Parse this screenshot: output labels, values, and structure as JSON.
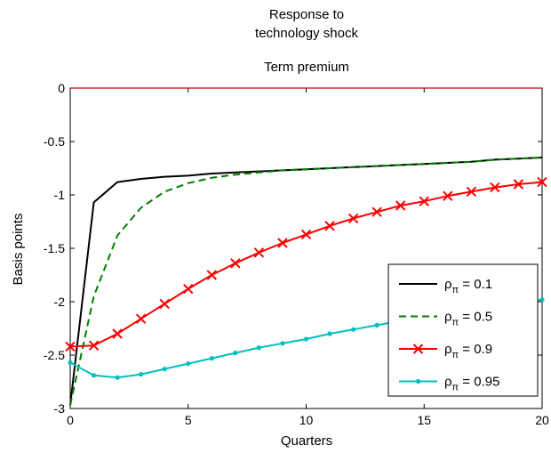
{
  "chart_data": {
    "type": "line",
    "title_lines": [
      "Response to",
      "technology shock"
    ],
    "subtitle": "Term premium",
    "xlabel": "Quarters",
    "ylabel": "Basis points",
    "xlim": [
      0,
      20
    ],
    "ylim": [
      -3,
      0
    ],
    "xticks": [
      0,
      5,
      10,
      15,
      20
    ],
    "yticks": [
      0,
      -0.5,
      -1,
      -1.5,
      -2,
      -2.5,
      -3
    ],
    "xtick_labels": [
      "0",
      "5",
      "10",
      "15",
      "20"
    ],
    "ytick_labels": [
      "0",
      "-0.5",
      "-1",
      "-1.5",
      "-2",
      "-2.5",
      "-3"
    ],
    "grid": false,
    "legend_position": "lower-right",
    "zero_line_color": "#cc0000",
    "x": [
      0,
      1,
      2,
      3,
      4,
      5,
      6,
      7,
      8,
      9,
      10,
      11,
      12,
      13,
      14,
      15,
      16,
      17,
      18,
      19,
      20
    ],
    "series": [
      {
        "name_base": "ρ",
        "name_sub": "π",
        "name_rest": " = 0.1",
        "color": "#000000",
        "style": "solid",
        "marker": "none",
        "values": [
          -2.97,
          -1.07,
          -0.88,
          -0.85,
          -0.83,
          -0.82,
          -0.8,
          -0.79,
          -0.78,
          -0.77,
          -0.76,
          -0.75,
          -0.74,
          -0.73,
          -0.72,
          -0.71,
          -0.7,
          -0.69,
          -0.67,
          -0.66,
          -0.65
        ]
      },
      {
        "name_base": "ρ",
        "name_sub": "π",
        "name_rest": " = 0.5",
        "color": "#007f00",
        "style": "dashed",
        "marker": "none",
        "values": [
          -2.97,
          -1.95,
          -1.38,
          -1.12,
          -0.97,
          -0.89,
          -0.84,
          -0.81,
          -0.79,
          -0.77,
          -0.76,
          -0.75,
          -0.74,
          -0.73,
          -0.72,
          -0.71,
          -0.7,
          -0.69,
          -0.67,
          -0.66,
          -0.65
        ]
      },
      {
        "name_base": "ρ",
        "name_sub": "π",
        "name_rest": " = 0.9",
        "color": "#ff0000",
        "style": "solid",
        "marker": "x",
        "values": [
          -2.42,
          -2.41,
          -2.3,
          -2.16,
          -2.02,
          -1.88,
          -1.75,
          -1.64,
          -1.54,
          -1.45,
          -1.37,
          -1.29,
          -1.22,
          -1.16,
          -1.1,
          -1.06,
          -1.01,
          -0.97,
          -0.93,
          -0.9,
          -0.88
        ]
      },
      {
        "name_base": "ρ",
        "name_sub": "π",
        "name_rest": " = 0.95",
        "color": "#00bfbf",
        "style": "solid",
        "marker": "dot",
        "values": [
          -2.57,
          -2.69,
          -2.71,
          -2.68,
          -2.63,
          -2.58,
          -2.53,
          -2.48,
          -2.43,
          -2.39,
          -2.35,
          -2.3,
          -2.26,
          -2.22,
          -2.18,
          -2.15,
          -2.11,
          -2.08,
          -2.05,
          -2.01,
          -1.98
        ]
      }
    ]
  }
}
